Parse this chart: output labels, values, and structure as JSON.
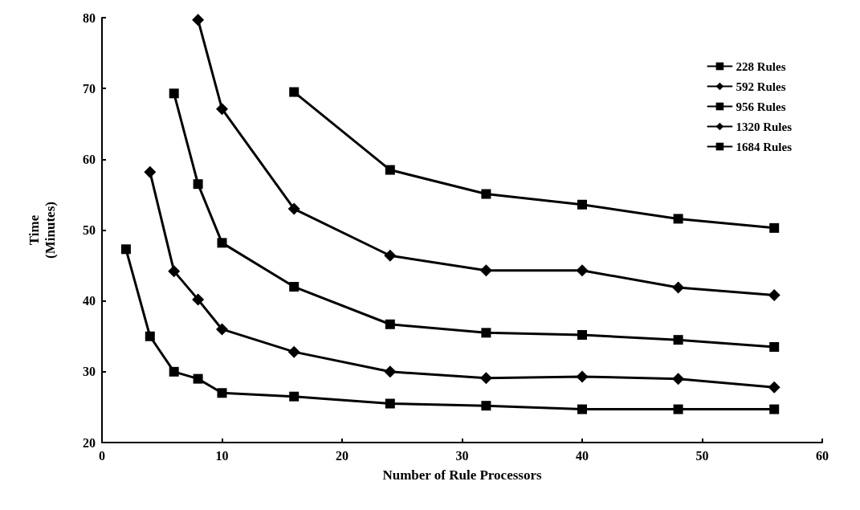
{
  "chart_data": {
    "type": "line",
    "xlabel": "Number of Rule Processors",
    "ylabel": "Time\n(Minutes)",
    "xlim": [
      0,
      60
    ],
    "xticks": [
      0,
      10,
      20,
      30,
      40,
      50,
      60
    ],
    "ylim": [
      20,
      80
    ],
    "yticks": [
      20,
      30,
      40,
      50,
      60,
      70,
      80
    ],
    "grid": false,
    "legend": "top right",
    "line_style": "solid",
    "series": [
      {
        "name": "228 Rules",
        "color": "#000000",
        "marker": "square",
        "x": [
          2,
          4,
          6,
          8,
          10,
          16,
          24,
          32,
          40,
          48,
          56
        ],
        "values": [
          47.3,
          35,
          30,
          29,
          27,
          26.5,
          25.5,
          25.2,
          24.7,
          24.7,
          24.7
        ]
      },
      {
        "name": "592 Rules",
        "color": "#000000",
        "marker": "diamond",
        "x": [
          4,
          6,
          8,
          10,
          16,
          24,
          32,
          40,
          48,
          56
        ],
        "values": [
          58.2,
          44.2,
          40.2,
          36,
          32.8,
          30,
          29.1,
          29.3,
          29,
          27.8
        ]
      },
      {
        "name": "956 Rules",
        "color": "#000000",
        "marker": "square",
        "x": [
          6,
          8,
          10,
          16,
          24,
          32,
          40,
          48,
          56
        ],
        "values": [
          69.3,
          56.5,
          48.2,
          42,
          36.7,
          35.5,
          35.2,
          34.5,
          33.5
        ]
      },
      {
        "name": "1320 Rules",
        "color": "#000000",
        "marker": "diamond",
        "x": [
          8,
          10,
          16,
          24,
          32,
          40,
          48,
          56
        ],
        "values": [
          79.7,
          67.1,
          53,
          46.4,
          44.3,
          44.3,
          41.9,
          40.8
        ]
      },
      {
        "name": "1684 Rules",
        "color": "#000000",
        "marker": "square",
        "x": [
          16,
          24,
          32,
          40,
          48,
          56
        ],
        "values": [
          69.5,
          58.5,
          55.1,
          53.6,
          51.6,
          50.3
        ]
      }
    ]
  }
}
